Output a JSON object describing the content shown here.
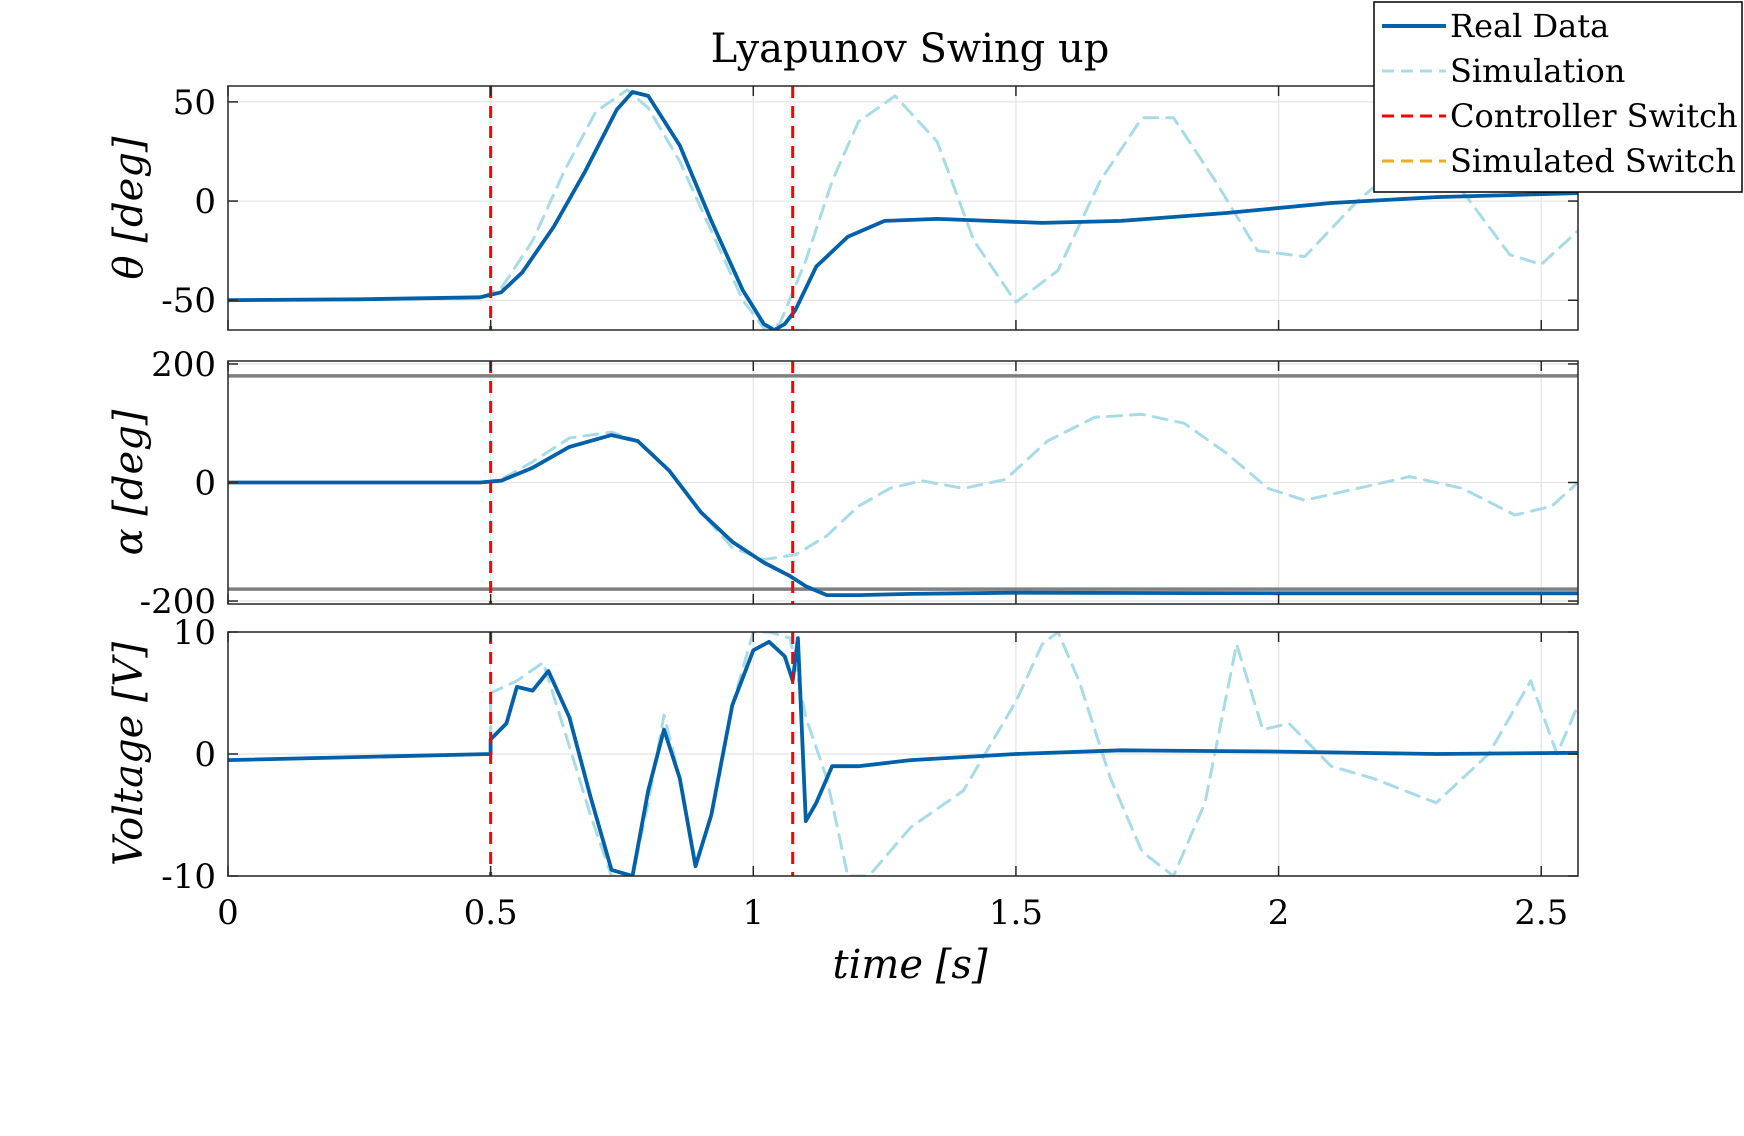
{
  "chart_data": {
    "type": "line",
    "title": "Lyapunov Swing up",
    "xlabel": "time [s]",
    "xlim": [
      0,
      2.57
    ],
    "xticks": [
      0,
      0.5,
      1,
      1.5,
      2,
      2.5
    ],
    "xtick_labels": [
      "0",
      "0.5",
      "1",
      "1.5",
      "2",
      "2.5"
    ],
    "grid": true,
    "legend": {
      "placement": "top-right",
      "entries": [
        {
          "label": "Real Data",
          "color": "#0060a8",
          "style": "solid"
        },
        {
          "label": "Simulation",
          "color": "#a8dbe5",
          "style": "dashed"
        },
        {
          "label": "Controller Switch",
          "color": "#ff0000",
          "style": "dashed"
        },
        {
          "label": "Simulated Switch",
          "color": "#e6b020",
          "style": "dashed"
        }
      ]
    },
    "controller_switch_times": [
      0.5,
      1.075
    ],
    "panels": [
      {
        "id": "theta",
        "ylabel": "θ [deg]",
        "ylim": [
          -65,
          58
        ],
        "yticks": [
          50,
          0,
          -50
        ],
        "ytick_labels": [
          "50",
          "0",
          "-50"
        ],
        "series": [
          {
            "name": "Real Data",
            "x": [
              0,
              0.25,
              0.48,
              0.52,
              0.56,
              0.62,
              0.68,
              0.74,
              0.77,
              0.8,
              0.86,
              0.92,
              0.98,
              1.02,
              1.04,
              1.06,
              1.08,
              1.12,
              1.18,
              1.25,
              1.35,
              1.45,
              1.55,
              1.7,
              1.9,
              2.1,
              2.3,
              2.57
            ],
            "y": [
              -50,
              -49.5,
              -48.5,
              -46,
              -36,
              -13,
              15,
              46,
              55,
              53,
              28,
              -10,
              -45,
              -62,
              -65,
              -62,
              -55,
              -33,
              -18,
              -10,
              -9,
              -10,
              -11,
              -10,
              -6,
              -1,
              2,
              4
            ]
          },
          {
            "name": "Simulation",
            "x": [
              0,
              0.25,
              0.48,
              0.52,
              0.58,
              0.64,
              0.7,
              0.76,
              0.8,
              0.86,
              0.92,
              0.98,
              1.02,
              1.05,
              1.1,
              1.15,
              1.2,
              1.27,
              1.35,
              1.42,
              1.5,
              1.58,
              1.66,
              1.74,
              1.8,
              1.88,
              1.96,
              2.05,
              2.15,
              2.24,
              2.35,
              2.44,
              2.5,
              2.57
            ],
            "y": [
              -50,
              -49.5,
              -48.5,
              -44,
              -20,
              15,
              45,
              56,
              47,
              20,
              -15,
              -50,
              -64,
              -62,
              -30,
              10,
              40,
              53,
              30,
              -20,
              -51,
              -35,
              10,
              42,
              42,
              10,
              -25,
              -28,
              0,
              20,
              5,
              -27,
              -32,
              -15
            ]
          }
        ]
      },
      {
        "id": "alpha",
        "ylabel": "α [deg]",
        "ylim": [
          -205,
          205
        ],
        "yticks": [
          200,
          0,
          -200
        ],
        "ytick_labels": [
          "200",
          "0",
          "-200"
        ],
        "reference_lines": [
          180,
          -180
        ],
        "series": [
          {
            "name": "Real Data",
            "x": [
              0,
              0.48,
              0.52,
              0.58,
              0.65,
              0.73,
              0.78,
              0.84,
              0.9,
              0.96,
              1.02,
              1.07,
              1.1,
              1.14,
              1.2,
              1.3,
              1.5,
              2.0,
              2.57
            ],
            "y": [
              0,
              0,
              3,
              25,
              60,
              80,
              70,
              20,
              -50,
              -100,
              -135,
              -158,
              -175,
              -190,
              -190,
              -188,
              -186,
              -187,
              -187
            ]
          },
          {
            "name": "Simulation",
            "x": [
              0,
              0.48,
              0.52,
              0.58,
              0.65,
              0.73,
              0.78,
              0.84,
              0.9,
              0.96,
              1.02,
              1.08,
              1.14,
              1.2,
              1.26,
              1.32,
              1.4,
              1.48,
              1.56,
              1.65,
              1.74,
              1.82,
              1.9,
              1.98,
              2.05,
              2.15,
              2.25,
              2.35,
              2.45,
              2.52,
              2.57
            ],
            "y": [
              0,
              0,
              5,
              35,
              75,
              85,
              70,
              20,
              -50,
              -110,
              -130,
              -122,
              -90,
              -40,
              -10,
              3,
              -10,
              5,
              70,
              110,
              115,
              100,
              50,
              -10,
              -30,
              -10,
              10,
              -10,
              -55,
              -40,
              0
            ]
          }
        ]
      },
      {
        "id": "voltage",
        "ylabel": "Voltage [V]",
        "ylim": [
          -10,
          10
        ],
        "yticks": [
          10,
          0,
          -10
        ],
        "ytick_labels": [
          "10",
          "0",
          "-10"
        ],
        "series": [
          {
            "name": "Real Data",
            "x": [
              0,
              0.5,
              0.5,
              0.53,
              0.55,
              0.58,
              0.61,
              0.65,
              0.69,
              0.73,
              0.77,
              0.8,
              0.83,
              0.86,
              0.89,
              0.92,
              0.96,
              1.0,
              1.03,
              1.06,
              1.075,
              1.085,
              1.1,
              1.12,
              1.15,
              1.2,
              1.3,
              1.5,
              1.7,
              2.0,
              2.3,
              2.57
            ],
            "y": [
              -0.5,
              0,
              1.2,
              2.5,
              5.5,
              5.2,
              6.8,
              3,
              -3.5,
              -9.5,
              -10,
              -3,
              2,
              -2,
              -9.2,
              -5,
              4,
              8.5,
              9.2,
              8.0,
              6.0,
              9.5,
              -5.5,
              -4,
              -1,
              -1,
              -0.5,
              0,
              0.3,
              0.2,
              0,
              0.1
            ]
          },
          {
            "name": "Simulation",
            "x": [
              0,
              0.5,
              0.5,
              0.55,
              0.6,
              0.64,
              0.69,
              0.73,
              0.77,
              0.8,
              0.83,
              0.86,
              0.89,
              0.92,
              0.96,
              1.0,
              1.03,
              1.07,
              1.1,
              1.14,
              1.18,
              1.22,
              1.3,
              1.4,
              1.5,
              1.55,
              1.58,
              1.62,
              1.68,
              1.74,
              1.8,
              1.86,
              1.92,
              1.97,
              2.02,
              2.1,
              2.18,
              2.3,
              2.4,
              2.48,
              2.53,
              2.57
            ],
            "y": [
              -0.5,
              0,
              5,
              6,
              7.5,
              2,
              -5,
              -10,
              -10,
              -4,
              3.2,
              -2,
              -9,
              -5,
              4,
              10,
              10,
              9.5,
              3,
              -2,
              -10,
              -10,
              -6,
              -3,
              4.3,
              9,
              10,
              6,
              -2,
              -8,
              -10,
              -4,
              9,
              2,
              2.5,
              -1,
              -2,
              -4,
              0,
              6,
              0,
              4
            ]
          }
        ]
      }
    ]
  }
}
